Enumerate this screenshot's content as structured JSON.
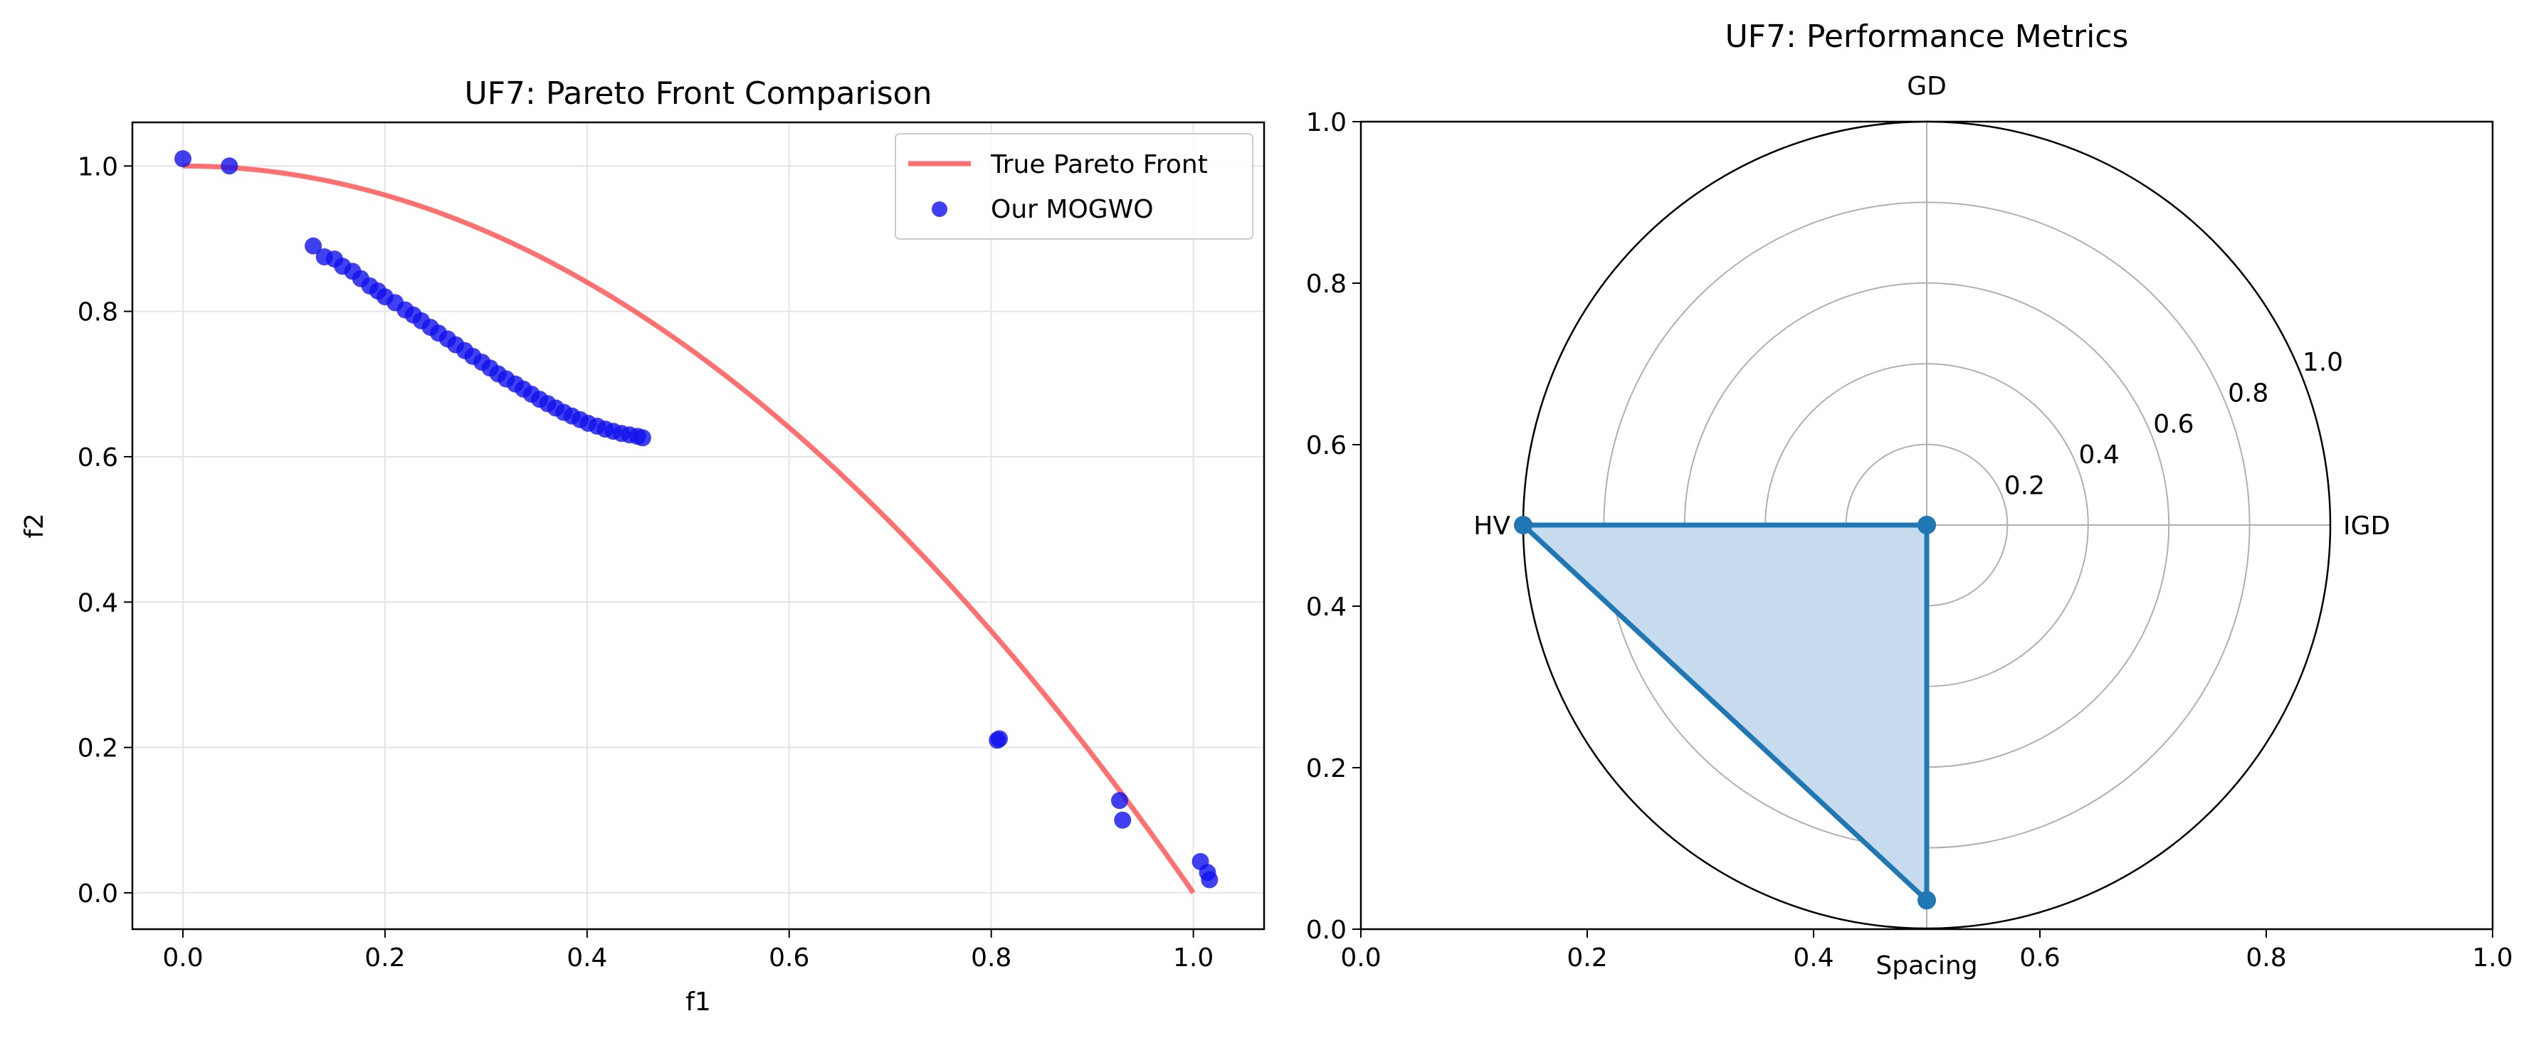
{
  "chart_data": [
    {
      "type": "scatter",
      "title": "UF7: Pareto Front Comparison",
      "xlabel": "f1",
      "ylabel": "f2",
      "xlim": [
        -0.05,
        1.07
      ],
      "ylim": [
        -0.05,
        1.06
      ],
      "xticks": [
        0.0,
        0.2,
        0.4,
        0.6,
        0.8,
        1.0
      ],
      "yticks": [
        0.0,
        0.2,
        0.4,
        0.6,
        0.8,
        1.0
      ],
      "xtick_labels": [
        "0.0",
        "0.2",
        "0.4",
        "0.6",
        "0.8",
        "1.0"
      ],
      "ytick_labels": [
        "0.0",
        "0.2",
        "0.4",
        "0.6",
        "0.8",
        "1.0"
      ],
      "grid": true,
      "legend_position": "top-right",
      "series": [
        {
          "name": "True Pareto Front",
          "kind": "line",
          "color": "#ff4d4d",
          "formula": "f2 = 1 - f1^2",
          "x_range": [
            0,
            1
          ]
        },
        {
          "name": "Our MOGWO",
          "kind": "scatter",
          "color": "#1010ee",
          "points": [
            [
              0.0,
              1.01
            ],
            [
              0.046,
              1.0
            ],
            [
              0.129,
              0.89
            ],
            [
              0.14,
              0.875
            ],
            [
              0.15,
              0.872
            ],
            [
              0.158,
              0.862
            ],
            [
              0.168,
              0.855
            ],
            [
              0.176,
              0.845
            ],
            [
              0.185,
              0.835
            ],
            [
              0.193,
              0.828
            ],
            [
              0.2,
              0.82
            ],
            [
              0.21,
              0.812
            ],
            [
              0.22,
              0.802
            ],
            [
              0.228,
              0.795
            ],
            [
              0.236,
              0.787
            ],
            [
              0.245,
              0.778
            ],
            [
              0.253,
              0.77
            ],
            [
              0.262,
              0.762
            ],
            [
              0.27,
              0.754
            ],
            [
              0.279,
              0.746
            ],
            [
              0.287,
              0.738
            ],
            [
              0.296,
              0.73
            ],
            [
              0.304,
              0.722
            ],
            [
              0.312,
              0.714
            ],
            [
              0.32,
              0.707
            ],
            [
              0.329,
              0.7
            ],
            [
              0.337,
              0.693
            ],
            [
              0.345,
              0.686
            ],
            [
              0.353,
              0.679
            ],
            [
              0.361,
              0.673
            ],
            [
              0.369,
              0.667
            ],
            [
              0.377,
              0.661
            ],
            [
              0.385,
              0.656
            ],
            [
              0.393,
              0.651
            ],
            [
              0.401,
              0.646
            ],
            [
              0.41,
              0.642
            ],
            [
              0.418,
              0.638
            ],
            [
              0.426,
              0.635
            ],
            [
              0.434,
              0.632
            ],
            [
              0.442,
              0.63
            ],
            [
              0.45,
              0.628
            ],
            [
              0.455,
              0.626
            ],
            [
              0.806,
              0.21
            ],
            [
              0.808,
              0.212
            ],
            [
              0.927,
              0.127
            ],
            [
              0.93,
              0.1
            ],
            [
              1.007,
              0.043
            ],
            [
              1.014,
              0.028
            ],
            [
              1.016,
              0.018
            ]
          ]
        }
      ]
    },
    {
      "type": "radar",
      "title": "UF7: Performance Metrics",
      "axes": [
        "GD",
        "IGD",
        "Spacing",
        "HV"
      ],
      "values": [
        0.0,
        0.0,
        0.93,
        1.0
      ],
      "rgrid": [
        0.2,
        0.4,
        0.6,
        0.8,
        1.0
      ],
      "rgrid_labels": [
        "0.2",
        "0.4",
        "0.6",
        "0.8",
        "1.0"
      ],
      "rlim": [
        0,
        1
      ],
      "color": "#1f77b4",
      "fill_color": "#c6dbed",
      "cartesian_frame": {
        "xlim": [
          0,
          1
        ],
        "ylim": [
          0,
          1
        ],
        "xticks": [
          0.0,
          0.2,
          0.4,
          0.6,
          0.8,
          1.0
        ],
        "yticks": [
          0.0,
          0.2,
          0.4,
          0.6,
          0.8,
          1.0
        ],
        "xtick_labels": [
          "0.0",
          "0.2",
          "0.4",
          "0.6",
          "0.8",
          "1.0"
        ],
        "ytick_labels": [
          "0.0",
          "0.2",
          "0.4",
          "0.6",
          "0.8",
          "1.0"
        ]
      }
    }
  ]
}
